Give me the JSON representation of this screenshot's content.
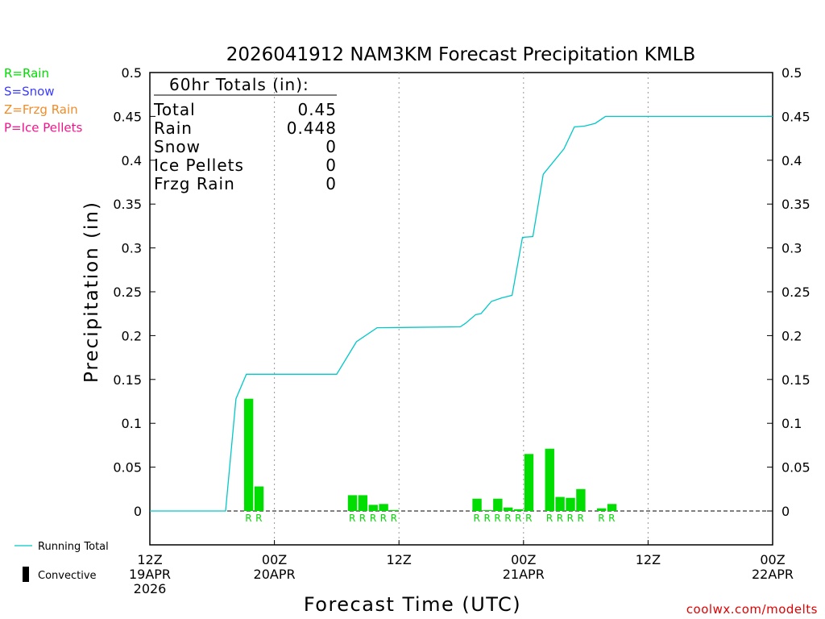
{
  "chart_data": {
    "type": "bar",
    "title": "2026041912 NAM3KM Forecast Precipitation KMLB",
    "xlabel": "Forecast Time (UTC)",
    "ylabel": "Precipitation (in)",
    "x_unit": "forecast hour",
    "xlim": [
      0,
      60
    ],
    "ylim": [
      -0.04,
      0.5
    ],
    "y_ticks": [
      "0",
      "0.05",
      "0.1",
      "0.15",
      "0.2",
      "0.25",
      "0.3",
      "0.35",
      "0.4",
      "0.45",
      "0.5"
    ],
    "y_tick_values": [
      0,
      0.05,
      0.1,
      0.15,
      0.2,
      0.25,
      0.3,
      0.35,
      0.4,
      0.45,
      0.5
    ],
    "x_ticks": [
      {
        "hour": 0,
        "lines": [
          "12Z",
          "19APR",
          "2026"
        ]
      },
      {
        "hour": 12,
        "lines": [
          "00Z",
          "20APR"
        ]
      },
      {
        "hour": 24,
        "lines": [
          "12Z"
        ]
      },
      {
        "hour": 36,
        "lines": [
          "00Z",
          "21APR"
        ]
      },
      {
        "hour": 48,
        "lines": [
          "12Z"
        ]
      },
      {
        "hour": 60,
        "lines": [
          "00Z",
          "22APR"
        ]
      }
    ],
    "bars": [
      {
        "hour": 9,
        "value": 0.128,
        "type": "R"
      },
      {
        "hour": 10,
        "value": 0.028,
        "type": "R"
      },
      {
        "hour": 19,
        "value": 0.018,
        "type": "R"
      },
      {
        "hour": 20,
        "value": 0.018,
        "type": "R"
      },
      {
        "hour": 21,
        "value": 0.007,
        "type": "R"
      },
      {
        "hour": 22,
        "value": 0.008,
        "type": "R"
      },
      {
        "hour": 23,
        "value": 0.001,
        "type": "R"
      },
      {
        "hour": 31,
        "value": 0.014,
        "type": "R"
      },
      {
        "hour": 32,
        "value": 0.001,
        "type": "R"
      },
      {
        "hour": 33,
        "value": 0.014,
        "type": "R"
      },
      {
        "hour": 34,
        "value": 0.004,
        "type": "R"
      },
      {
        "hour": 35,
        "value": 0.002,
        "type": "R"
      },
      {
        "hour": 36,
        "value": 0.065,
        "type": "R"
      },
      {
        "hour": 38,
        "value": 0.071,
        "type": "R"
      },
      {
        "hour": 39,
        "value": 0.016,
        "type": "R"
      },
      {
        "hour": 40,
        "value": 0.015,
        "type": "R"
      },
      {
        "hour": 41,
        "value": 0.025,
        "type": "R"
      },
      {
        "hour": 43,
        "value": 0.003,
        "type": "R"
      },
      {
        "hour": 44,
        "value": 0.008,
        "type": "R"
      }
    ],
    "running_total": {
      "name": "Running Total",
      "x": [
        0,
        7.3,
        8.3,
        9.3,
        18.0,
        19.9,
        21.9,
        29.9,
        30.4,
        31.4,
        31.9,
        32.9,
        33.9,
        34.9,
        35.9,
        36.9,
        37.9,
        39.9,
        40.9,
        41.9,
        42.9,
        43.9,
        60
      ],
      "y": [
        0,
        0,
        0.128,
        0.156,
        0.156,
        0.193,
        0.209,
        0.21,
        0.214,
        0.224,
        0.225,
        0.239,
        0.243,
        0.246,
        0.312,
        0.313,
        0.384,
        0.413,
        0.438,
        0.439,
        0.442,
        0.45,
        0.45
      ]
    },
    "colors": {
      "rain": "#00dd00",
      "snow": "#3c3cff",
      "freezing_rain": "#f08c28",
      "ice_pellets": "#f0148c",
      "running_total": "#00c8c8",
      "convective": "#000000",
      "grid": "#999999",
      "axis": "#000000",
      "footer": "#e10000"
    }
  },
  "totals": {
    "header": "60hr Totals (in):",
    "rows": [
      {
        "label": "Total",
        "value": "0.45"
      },
      {
        "label": "Rain",
        "value": "0.448"
      },
      {
        "label": "Snow",
        "value": "0"
      },
      {
        "label": "Ice Pellets",
        "value": "0"
      },
      {
        "label": "Frzg Rain",
        "value": "0"
      }
    ]
  },
  "precip_key": [
    {
      "text": "R=Rain",
      "color": "#00dd00"
    },
    {
      "text": "S=Snow",
      "color": "#3c3cff"
    },
    {
      "text": "Z=Frzg Rain",
      "color": "#f08c28"
    },
    {
      "text": "P=Ice Pellets",
      "color": "#f0148c"
    }
  ],
  "legend": {
    "running_total_label": "Running Total",
    "convective_label": "Convective"
  },
  "footer": {
    "credit": "coolwx.com/modelts"
  }
}
